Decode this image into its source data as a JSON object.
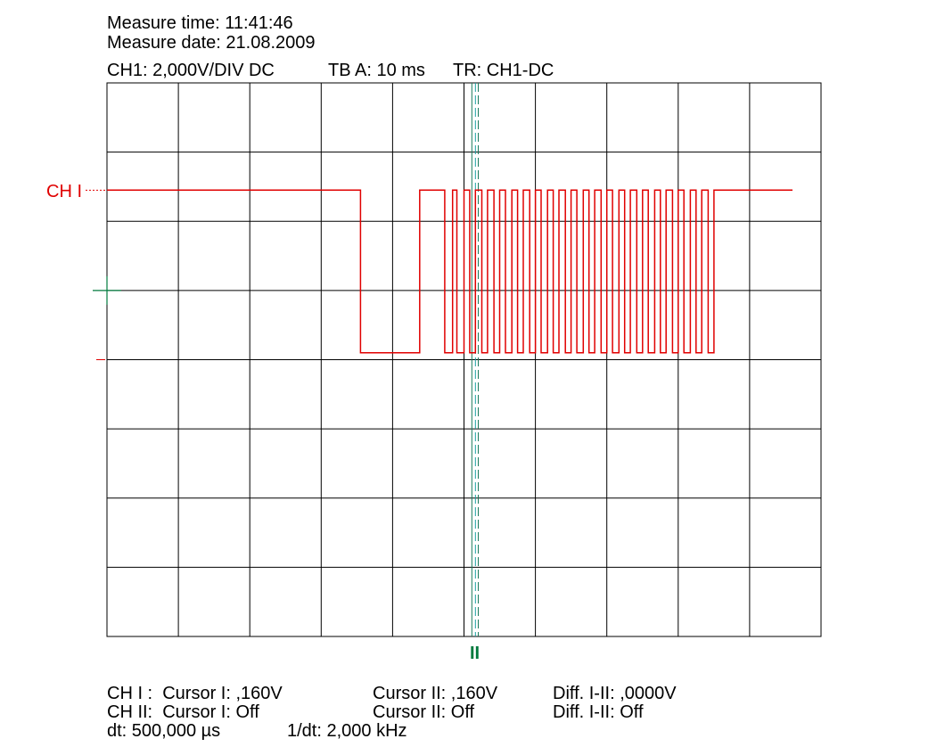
{
  "header": {
    "measure_time": "Measure time: 11:41:46",
    "measure_date": "Measure date: 21.08.2009",
    "ch1_setting": "CH1: 2,000V/DIV DC",
    "timebase": "TB A: 10 ms",
    "trigger": "TR: CH1-DC"
  },
  "markers": {
    "ch1_label": "CH I",
    "cursor_label": "II"
  },
  "footer": {
    "ch1_cursor1": "CH I :  Cursor I: ,160V",
    "ch1_cursor2": "Cursor II: ,160V",
    "ch1_diff": "Diff. I-II: ,0000V",
    "ch2_cursor1": "CH II:  Cursor I: Off",
    "ch2_cursor2": "Cursor II: Off",
    "ch2_diff": "Diff. I-II: Off",
    "dt": "dt: 500,000 µs",
    "inv_dt": "1/dt: 2,000 kHz"
  },
  "colors": {
    "trace": "#e00000",
    "grid": "#000000",
    "cursor1": "#1a7a5a",
    "cursor2": "#1aa0a0",
    "marker_green": "#007a3d"
  },
  "chart_data": {
    "type": "line",
    "title": "",
    "xlabel": "",
    "ylabel": "",
    "x_divisions": 10,
    "y_divisions": 8,
    "volts_per_div": 2,
    "ms_per_div": 10,
    "xlim_ms": [
      0,
      100
    ],
    "ylim_div": [
      0,
      8
    ],
    "grid": true,
    "ground_div": 4,
    "high_level_div": 6.45,
    "low_level_div": 4.1,
    "series": [
      {
        "transitions_ms": [
          0,
          35.5,
          43.8,
          47.3,
          48.4,
          49.0,
          50.0,
          50.8,
          51.6,
          52.5,
          53.3,
          54.2,
          55.0,
          55.8,
          56.7,
          57.5,
          58.3,
          59.2,
          60.0,
          60.8,
          61.7,
          62.5,
          63.3,
          64.2,
          65.0,
          65.8,
          66.7,
          67.5,
          68.3,
          69.2,
          70.0,
          70.8,
          71.7,
          72.5,
          73.3,
          74.2,
          75.0,
          75.8,
          76.7,
          77.5,
          78.3,
          79.2,
          80.0,
          80.8,
          81.7,
          82.5,
          83.3,
          84.2,
          85.0,
          85.6,
          96.0
        ],
        "levels_div": [
          6.45,
          4.1,
          6.45,
          4.1,
          6.45,
          4.1,
          6.45,
          4.1,
          6.45,
          4.1,
          6.45,
          4.1,
          6.45,
          4.1,
          6.45,
          4.1,
          6.45,
          4.1,
          6.45,
          4.1,
          6.45,
          4.1,
          6.45,
          4.1,
          6.45,
          4.1,
          6.45,
          4.1,
          6.45,
          4.1,
          6.45,
          4.1,
          6.45,
          4.1,
          6.45,
          4.1,
          6.45,
          4.1,
          6.45,
          4.1,
          6.45,
          4.1,
          6.45,
          4.1,
          6.45,
          4.1,
          6.45,
          4.1,
          6.45,
          6.45
        ]
      }
    ],
    "cursors_ms": [
      51.1,
      51.6,
      52.0
    ]
  }
}
